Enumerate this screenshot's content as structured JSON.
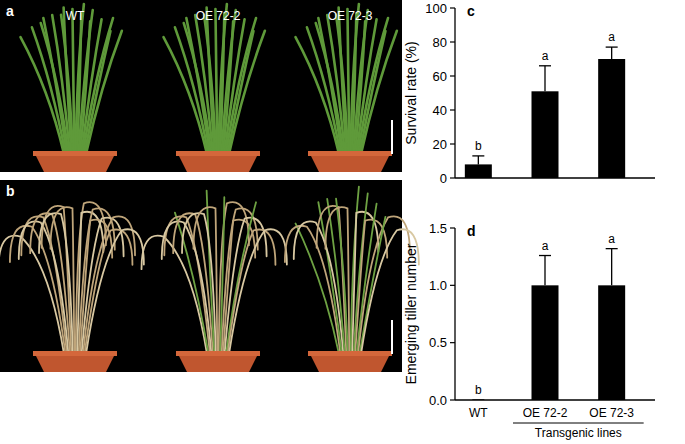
{
  "photos": [
    {
      "panel": "a",
      "captions": [
        "WT",
        "OE 72-2",
        "OE 72-3"
      ]
    },
    {
      "panel": "b"
    }
  ],
  "chart_data": [
    {
      "type": "bar",
      "panel": "c",
      "ylabel": "Survival rate (%)",
      "categories": [
        "WT",
        "OE 72-2",
        "OE 72-3"
      ],
      "values": [
        8,
        51,
        70
      ],
      "errors": [
        5,
        15,
        7
      ],
      "significance": [
        "b",
        "a",
        "a"
      ],
      "color": "#000000",
      "ylim": [
        0,
        100
      ],
      "yticks": [
        0,
        20,
        40,
        60,
        80,
        100
      ],
      "grid": false,
      "tick_labels": "y"
    },
    {
      "type": "bar",
      "panel": "d",
      "ylabel": "Emerging tiller number",
      "categories": [
        "WT",
        "OE 72-2",
        "OE 72-3"
      ],
      "values": [
        0,
        1.0,
        1.0
      ],
      "errors": [
        0,
        0.26,
        0.32
      ],
      "significance": [
        "b",
        "a",
        "a"
      ],
      "color": "#000000",
      "ylim": [
        0,
        1.5
      ],
      "yticks": [
        {
          "value": 0,
          "label": "0.0"
        },
        {
          "value": 0.5,
          "label": "0.5"
        },
        {
          "value": 1.0,
          "label": "1.0"
        },
        {
          "value": 1.5,
          "label": "1.5"
        }
      ],
      "grid": false,
      "annotations": [
        {
          "text": "Transgenic lines",
          "categories": [
            "OE 72-2",
            "OE 72-3"
          ]
        }
      ]
    }
  ]
}
